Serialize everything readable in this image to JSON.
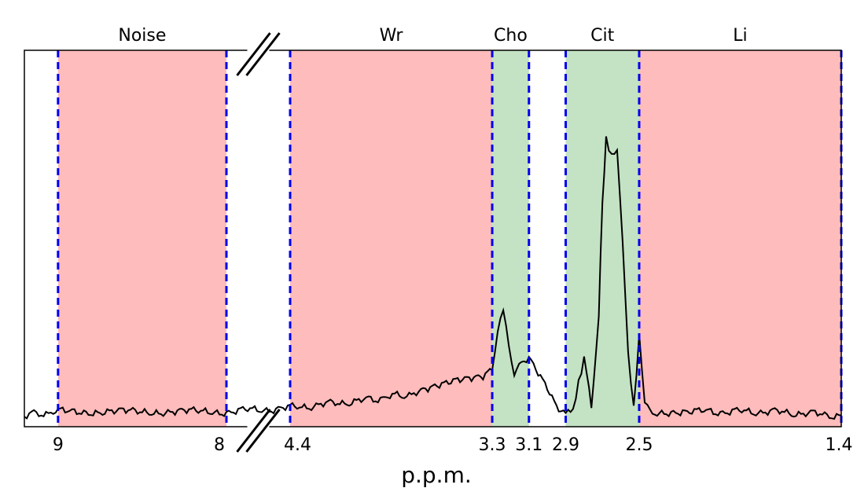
{
  "chart_data": {
    "type": "line",
    "title": "",
    "xlabel": "p.p.m.",
    "ylabel": "",
    "x_reversed": true,
    "axis_break": {
      "from": 8,
      "to": 4.4
    },
    "xlim_segments": [
      [
        9.2,
        8
      ],
      [
        4.4,
        1.4
      ]
    ],
    "ticks": [
      "9",
      "8",
      "4.4",
      "3.3",
      "3.1",
      "2.9",
      "2.5",
      "1.4"
    ],
    "regions": [
      {
        "label": "Noise",
        "from": 9,
        "to": 8,
        "kind": "excluded"
      },
      {
        "label": "Wr",
        "from": 4.4,
        "to": 3.3,
        "kind": "excluded"
      },
      {
        "label": "Cho",
        "from": 3.3,
        "to": 3.1,
        "kind": "included"
      },
      {
        "label": "Cit",
        "from": 2.9,
        "to": 2.5,
        "kind": "included"
      },
      {
        "label": "Li",
        "from": 2.5,
        "to": 1.4,
        "kind": "excluded"
      }
    ],
    "boundaries": [
      9,
      8,
      4.4,
      3.3,
      3.1,
      2.9,
      2.5,
      1.4
    ],
    "spectrum": {
      "x": [
        9.2,
        9.0,
        8.5,
        8.0,
        4.4,
        4.0,
        3.7,
        3.5,
        3.35,
        3.3,
        3.27,
        3.24,
        3.21,
        3.18,
        3.14,
        3.1,
        3.05,
        3.0,
        2.95,
        2.9,
        2.86,
        2.83,
        2.8,
        2.76,
        2.72,
        2.7,
        2.68,
        2.65,
        2.62,
        2.59,
        2.56,
        2.53,
        2.5,
        2.47,
        2.44,
        2.2,
        1.8,
        1.4
      ],
      "y": [
        0.03,
        0.04,
        0.04,
        0.04,
        0.05,
        0.07,
        0.09,
        0.12,
        0.13,
        0.15,
        0.26,
        0.32,
        0.22,
        0.13,
        0.18,
        0.18,
        0.14,
        0.1,
        0.05,
        0.03,
        0.05,
        0.12,
        0.18,
        0.05,
        0.3,
        0.6,
        0.76,
        0.72,
        0.74,
        0.5,
        0.2,
        0.05,
        0.24,
        0.06,
        0.04,
        0.04,
        0.04,
        0.03
      ]
    },
    "colors": {
      "excluded": "#ffbcbc",
      "included": "#c4e2c4",
      "boundary": "#0000ee",
      "line": "#000000"
    }
  }
}
